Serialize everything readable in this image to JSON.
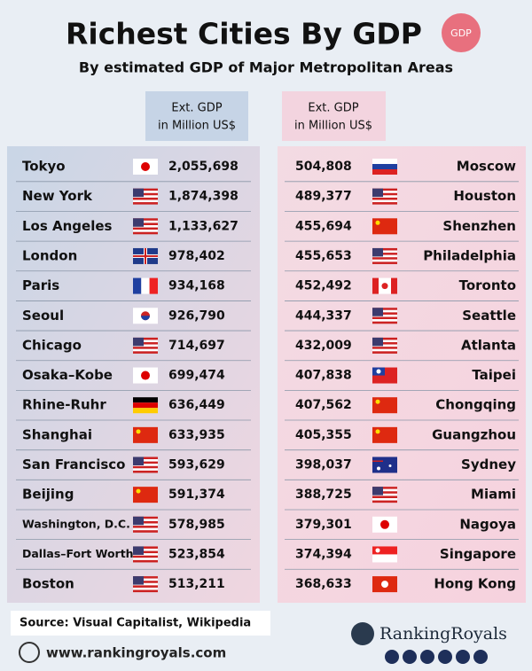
{
  "header": {
    "title": "Richest Cities By GDP",
    "badge": "GDP",
    "subtitle": "By estimated GDP of Major Metropolitan Areas"
  },
  "table": {
    "left_header": [
      "Ext. GDP",
      "in Million US$"
    ],
    "right_header": [
      "Ext. GDP",
      "in Million US$"
    ],
    "left_rows": [
      [
        "Tokyo",
        "2,055,698"
      ],
      [
        "New York",
        "1,874,398"
      ],
      [
        "Los Angeles",
        "1,133,627"
      ],
      [
        "London",
        "978,402"
      ],
      [
        "Paris",
        "934,168"
      ],
      [
        "Seoul",
        "926,790"
      ],
      [
        "Chicago",
        "714,697"
      ],
      [
        "Osaka–Kobe",
        "699,474"
      ],
      [
        "Rhine-Ruhr",
        "636,449"
      ],
      [
        "Shanghai",
        "633,935"
      ],
      [
        "San Francisco",
        "593,629"
      ],
      [
        "Beijing",
        "591,374"
      ],
      [
        "Washington, D.C.",
        "578,985"
      ],
      [
        "Dallas–Fort Worth",
        "523,854"
      ],
      [
        "Boston",
        "513,211"
      ]
    ],
    "right_rows": [
      [
        "504,808",
        "Moscow"
      ],
      [
        "489,377",
        "Houston"
      ],
      [
        "455,694",
        "Shenzhen"
      ],
      [
        "455,653",
        "Philadelphia"
      ],
      [
        "452,492",
        "Toronto"
      ],
      [
        "444,337",
        "Seattle"
      ],
      [
        "432,009",
        "Atlanta"
      ],
      [
        "407,838",
        "Taipei"
      ],
      [
        "407,562",
        "Chongqing"
      ],
      [
        "405,355",
        "Guangzhou"
      ],
      [
        "398,037",
        "Sydney"
      ],
      [
        "388,725",
        "Miami"
      ],
      [
        "379,301",
        "Nagoya"
      ],
      [
        "374,394",
        "Singapore"
      ],
      [
        "368,633",
        "Hong Kong"
      ]
    ]
  },
  "footer": {
    "source": "Source: Visual Capitalist, Wikipedia",
    "website": "www.rankingroyals.com",
    "brand": "RankingRoyals"
  }
}
